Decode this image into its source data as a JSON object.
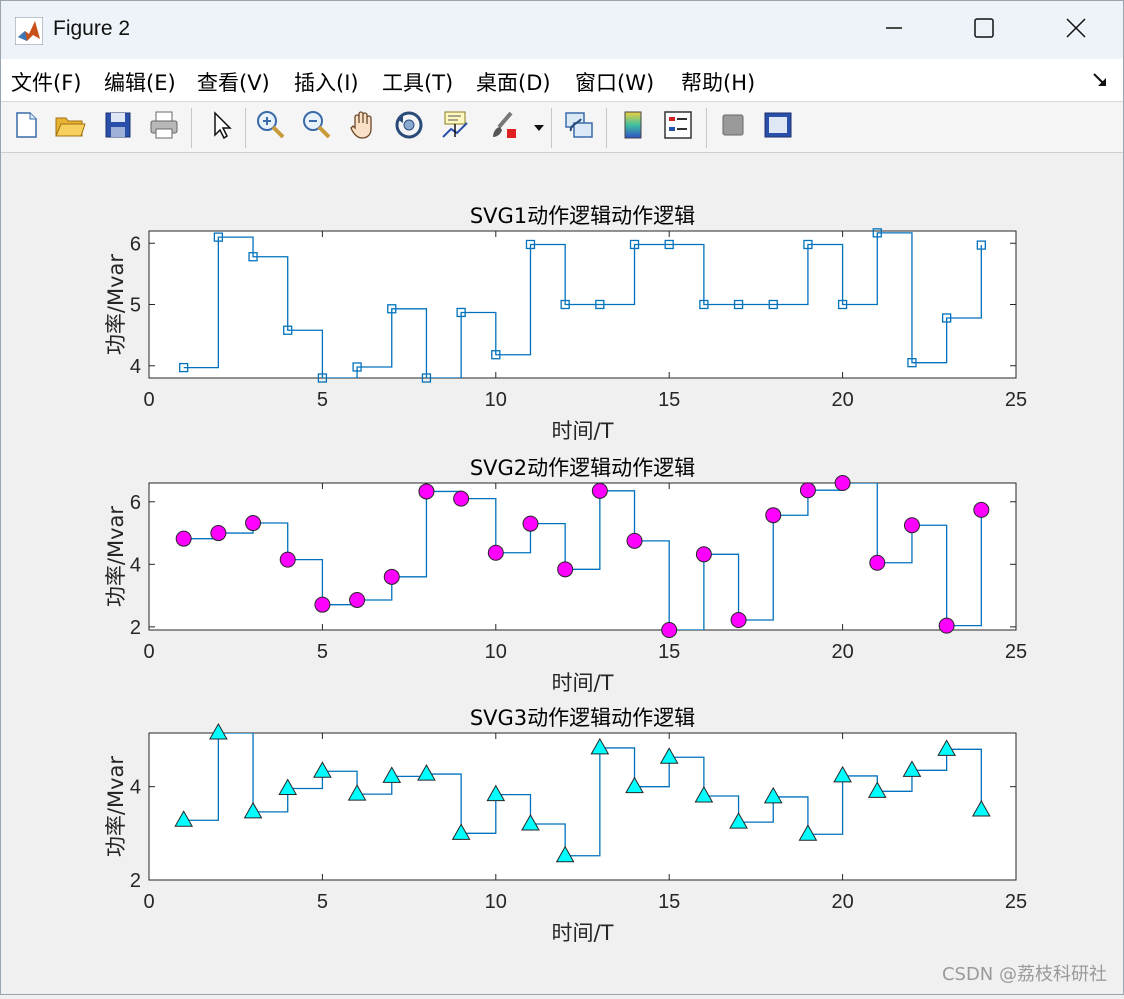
{
  "window": {
    "title": "Figure 2",
    "minimize_icon": "minimize-icon",
    "maximize_icon": "maximize-icon",
    "close_icon": "close-icon"
  },
  "menu": {
    "items": [
      {
        "label": "文件(F)"
      },
      {
        "label": "编辑(E)"
      },
      {
        "label": "查看(V)"
      },
      {
        "label": "插入(I)"
      },
      {
        "label": "工具(T)"
      },
      {
        "label": "桌面(D)"
      },
      {
        "label": "窗口(W)"
      },
      {
        "label": "帮助(H)"
      }
    ]
  },
  "toolbar": {
    "icons": [
      "new-figure-icon",
      "open-file-icon",
      "save-icon",
      "print-icon",
      "pointer-icon",
      "zoom-in-icon",
      "zoom-out-icon",
      "pan-hand-icon",
      "rotate-3d-icon",
      "data-cursor-icon",
      "brush-icon",
      "link-plot-icon",
      "colorbar-icon",
      "legend-icon",
      "hide-plot-tools-icon",
      "show-plot-tools-icon"
    ]
  },
  "chart_data": [
    {
      "type": "line",
      "title": "SVG1动作逻辑动作逻辑",
      "xlabel": "时间/T",
      "ylabel": "功率/Mvar",
      "xlim": [
        0,
        25
      ],
      "ylim": [
        3.8,
        6.2
      ],
      "xticks": [
        "0",
        "5",
        "10",
        "15",
        "20",
        "25"
      ],
      "yticks": [
        "4",
        "5",
        "6"
      ],
      "ytick_values": [
        4,
        5,
        6
      ],
      "step": true,
      "marker": "square",
      "marker_color": "#0072bd",
      "line_color": "#0072bd",
      "x": [
        1,
        2,
        3,
        4,
        5,
        6,
        7,
        8,
        9,
        10,
        11,
        12,
        13,
        14,
        15,
        16,
        17,
        18,
        19,
        20,
        21,
        22,
        23,
        24
      ],
      "y": [
        3.97,
        6.1,
        5.78,
        4.58,
        3.8,
        3.98,
        4.93,
        3.8,
        4.87,
        4.18,
        5.98,
        5.0,
        5.0,
        5.98,
        5.98,
        5.0,
        5.0,
        5.0,
        5.98,
        5.0,
        6.17,
        4.05,
        4.78,
        5.97
      ]
    },
    {
      "type": "line",
      "title": "SVG2动作逻辑动作逻辑",
      "xlabel": "时间/T",
      "ylabel": "功率/Mvar",
      "xlim": [
        0,
        25
      ],
      "ylim": [
        1.9,
        6.6
      ],
      "xticks": [
        "0",
        "5",
        "10",
        "15",
        "20",
        "25"
      ],
      "yticks": [
        "2",
        "4",
        "6"
      ],
      "ytick_values": [
        2,
        4,
        6
      ],
      "step": true,
      "marker": "circle",
      "marker_color": "#ff00ff",
      "line_color": "#0072bd",
      "x": [
        1,
        2,
        3,
        4,
        5,
        6,
        7,
        8,
        9,
        10,
        11,
        12,
        13,
        14,
        15,
        16,
        17,
        18,
        19,
        20,
        21,
        22,
        23,
        24
      ],
      "y": [
        4.82,
        5.0,
        5.32,
        4.15,
        2.71,
        2.86,
        3.6,
        6.33,
        6.1,
        4.37,
        5.3,
        3.84,
        6.35,
        4.75,
        1.9,
        4.32,
        2.22,
        5.57,
        6.37,
        6.6,
        4.05,
        5.25,
        2.04,
        5.74
      ]
    },
    {
      "type": "line",
      "title": "SVG3动作逻辑动作逻辑",
      "xlabel": "时间/T",
      "ylabel": "功率/Mvar",
      "xlim": [
        0,
        25
      ],
      "ylim": [
        2,
        5.15
      ],
      "xticks": [
        "0",
        "5",
        "10",
        "15",
        "20",
        "25"
      ],
      "yticks": [
        "2",
        "4"
      ],
      "ytick_values": [
        2,
        4
      ],
      "step": true,
      "marker": "triangle",
      "marker_color": "#00ffff",
      "line_color": "#0072bd",
      "x": [
        1,
        2,
        3,
        4,
        5,
        6,
        7,
        8,
        9,
        10,
        11,
        12,
        13,
        14,
        15,
        16,
        17,
        18,
        19,
        20,
        21,
        22,
        23,
        24
      ],
      "y": [
        3.28,
        5.15,
        3.46,
        3.96,
        4.33,
        3.84,
        4.22,
        4.27,
        3.0,
        3.83,
        3.2,
        2.52,
        4.83,
        4.0,
        4.63,
        3.8,
        3.24,
        3.78,
        2.98,
        4.23,
        3.9,
        4.35,
        4.8,
        3.5
      ]
    }
  ],
  "watermark": "CSDN @荔枝科研社"
}
